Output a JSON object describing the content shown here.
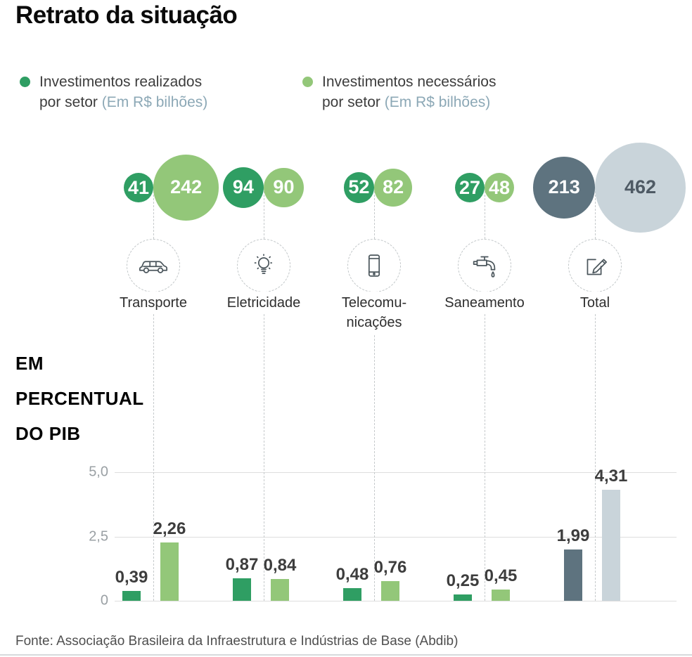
{
  "title": "Retrato da situação",
  "legend": {
    "realized": {
      "line1": "Investimentos realizados",
      "line2": "por setor",
      "sub": "(Em R$ bilhões)"
    },
    "needed": {
      "line1": "Investimentos necessários",
      "line2": "por setor",
      "sub": "(Em R$ bilhões)"
    }
  },
  "pib_label": {
    "line1": "EM",
    "line2": "PERCENTUAL",
    "line3": "DO PIB"
  },
  "source": "Fonte: Associação Brasileira da Infraestrutura e Indústrias de Base (Abdib)",
  "colors": {
    "realized_green": "#2f9e63",
    "needed_green": "#93c779",
    "realized_total": "#5e737f",
    "needed_total": "#c9d4da",
    "legend_sub": "#8ca8b6",
    "total_bubble_text": "#4e5a64",
    "value_text": "#3d3d3d"
  },
  "sectors": [
    {
      "label_lines": [
        "Transporte"
      ],
      "icon": "car-icon"
    },
    {
      "label_lines": [
        "Eletricidade"
      ],
      "icon": "lightbulb-icon"
    },
    {
      "label_lines": [
        "Telecomu-",
        "nicações"
      ],
      "icon": "smartphone-icon"
    },
    {
      "label_lines": [
        "Saneamento"
      ],
      "icon": "faucet-icon"
    },
    {
      "label_lines": [
        "Total"
      ],
      "icon": "pencil-icon"
    }
  ],
  "chart_data": [
    {
      "type": "bubble",
      "title": "Investimentos por setor (Em R$ bilhões)",
      "categories": [
        "Transporte",
        "Eletricidade",
        "Telecomunicações",
        "Saneamento",
        "Total"
      ],
      "series": [
        {
          "name": "Investimentos realizados por setor (Em R$ bilhões)",
          "values": [
            41,
            94,
            52,
            27,
            213
          ]
        },
        {
          "name": "Investimentos necessários por setor (Em R$ bilhões)",
          "values": [
            242,
            90,
            82,
            48,
            462
          ]
        }
      ],
      "legend_position": "top"
    },
    {
      "type": "bar",
      "title": "Em percentual do PIB",
      "categories": [
        "Transporte",
        "Eletricidade",
        "Telecomunicações",
        "Saneamento",
        "Total"
      ],
      "series": [
        {
          "name": "Investimentos realizados",
          "values": [
            0.39,
            0.87,
            0.48,
            0.25,
            1.99
          ],
          "labels": [
            "0,39",
            "0,87",
            "0,48",
            "0,25",
            "1,99"
          ]
        },
        {
          "name": "Investimentos necessários",
          "values": [
            2.26,
            0.84,
            0.76,
            0.45,
            4.31
          ],
          "labels": [
            "2,26",
            "0,84",
            "0,76",
            "0,45",
            "4,31"
          ]
        }
      ],
      "ylim": [
        0,
        5
      ],
      "yticks": [
        {
          "value": 5.0,
          "label": "5,0"
        },
        {
          "value": 2.5,
          "label": "2,5"
        },
        {
          "value": 0,
          "label": "0"
        }
      ],
      "grid": true
    }
  ]
}
